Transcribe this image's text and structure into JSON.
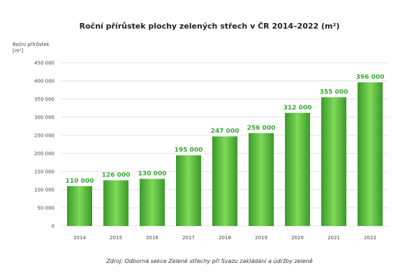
{
  "chart_data": {
    "type": "bar",
    "title": "Roční přírůstek plochy zelených střech v ČR 2014–2022 (m²)",
    "ylabel": [
      "Roční přírůstek",
      "[m²]"
    ],
    "xlabel": "",
    "categories": [
      "2014",
      "2015",
      "2016",
      "2017",
      "2018",
      "2019",
      "2020",
      "2021",
      "2022"
    ],
    "values": [
      110000,
      126000,
      130000,
      195000,
      247000,
      256000,
      312000,
      355000,
      396000
    ],
    "value_labels": [
      "110 000",
      "126 000",
      "130 000",
      "195 000",
      "247 000",
      "256 000",
      "312 000",
      "355 000",
      "396 000"
    ],
    "yticks": [
      0,
      50000,
      100000,
      150000,
      200000,
      250000,
      300000,
      350000,
      400000,
      450000
    ],
    "ytick_labels": [
      "0",
      "50 000",
      "100 000",
      "150 000",
      "200 000",
      "250 000",
      "300 000",
      "350 000",
      "400 000",
      "450 000"
    ],
    "ylim": [
      0,
      450000
    ],
    "grid": true,
    "legend": "none",
    "colors": {
      "bar_dark": "#3a9a2a",
      "bar_light": "#7ed957",
      "value_label": "#3aa935",
      "grid": "#d9d9d9",
      "axis_text": "#444444"
    }
  },
  "source": "Zdroj: Odborná sekce Zelené střechy při Svazu zakládání a údržby zeleně"
}
